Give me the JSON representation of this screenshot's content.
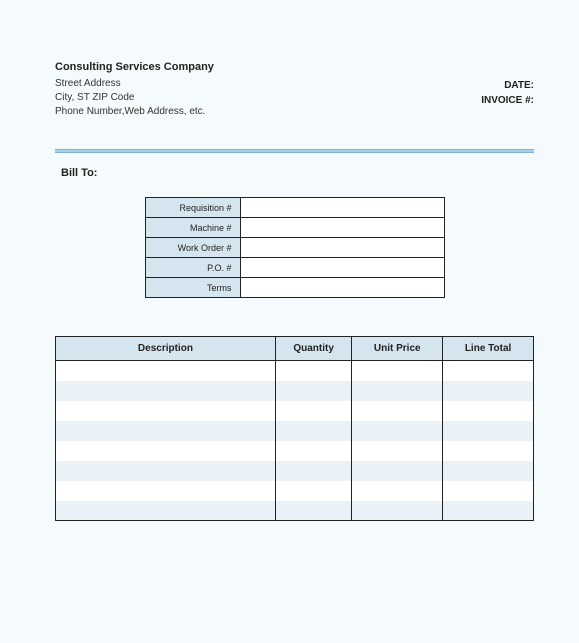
{
  "company": {
    "name": "Consulting Services Company",
    "street": "Street Address",
    "city_line": "City, ST  ZIP Code",
    "contact_line": "Phone Number,Web Address, etc."
  },
  "meta": {
    "date_label": "DATE:",
    "invoice_label": "INVOICE #:"
  },
  "bill_to_label": "Bill To:",
  "info_rows": {
    "requisition": "Requisition #",
    "machine": "Machine #",
    "work_order": "Work Order #",
    "po": "P.O. #",
    "terms": "Terms"
  },
  "columns": {
    "description": "Description",
    "quantity": "Quantity",
    "unit_price": "Unit Price",
    "line_total": "Line Total"
  },
  "colors": {
    "page_bg": "#f5fafc",
    "header_fill": "#d5e5ef",
    "stripe": "#eaf2f7",
    "border": "#222222",
    "divider": "#a9d1e6"
  },
  "line_count": 8
}
